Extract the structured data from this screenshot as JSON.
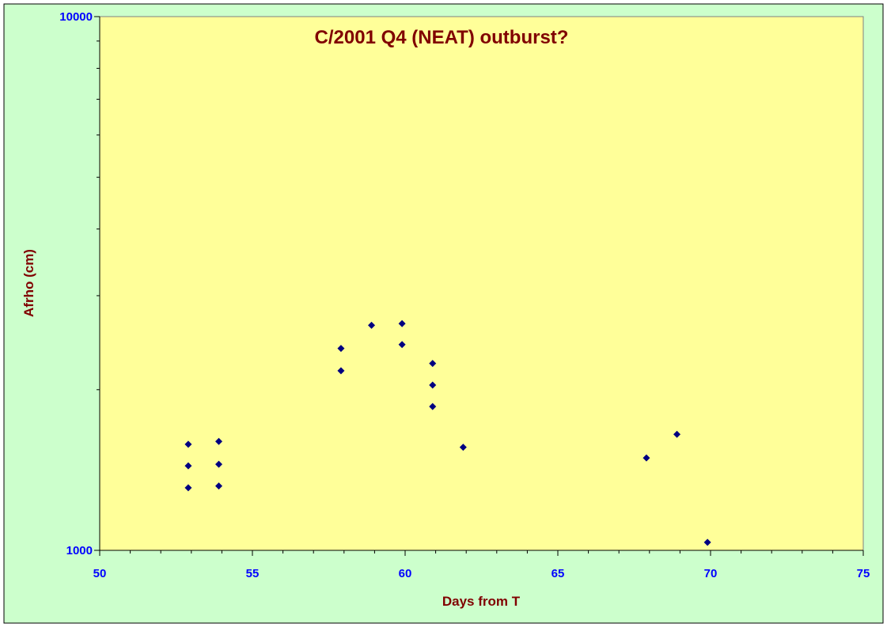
{
  "colors": {
    "background": "#ccffcc",
    "plot_area": "#ffff99",
    "title": "#800000",
    "axis_title": "#800000",
    "tick_label": "#0000ff",
    "marker": "#000080"
  },
  "chart_data": {
    "type": "scatter",
    "title": "C/2001 Q4 (NEAT) outburst?",
    "xlabel": "Days from T",
    "ylabel": "Afrho (cm)",
    "xlim": [
      50,
      75
    ],
    "ylim": [
      1000,
      10000
    ],
    "yscale": "log",
    "grid": false,
    "legend": "none",
    "marker": "diamond",
    "xticks": [
      50,
      55,
      60,
      65,
      70,
      75
    ],
    "xtick_labels": [
      "50",
      "55",
      "60",
      "65",
      "70",
      "75"
    ],
    "yticks": [
      1000,
      10000
    ],
    "ytick_labels": [
      "1000",
      "10000"
    ],
    "series": [
      {
        "points": [
          {
            "x": 52.9,
            "y": 1580
          },
          {
            "x": 52.9,
            "y": 1440
          },
          {
            "x": 52.9,
            "y": 1310
          },
          {
            "x": 53.9,
            "y": 1600
          },
          {
            "x": 53.9,
            "y": 1450
          },
          {
            "x": 53.9,
            "y": 1320
          },
          {
            "x": 57.9,
            "y": 2390
          },
          {
            "x": 57.9,
            "y": 2170
          },
          {
            "x": 58.9,
            "y": 2640
          },
          {
            "x": 59.9,
            "y": 2660
          },
          {
            "x": 59.9,
            "y": 2430
          },
          {
            "x": 60.9,
            "y": 2240
          },
          {
            "x": 60.9,
            "y": 2040
          },
          {
            "x": 60.9,
            "y": 1860
          },
          {
            "x": 61.9,
            "y": 1560
          },
          {
            "x": 67.9,
            "y": 1490
          },
          {
            "x": 68.9,
            "y": 1650
          },
          {
            "x": 69.9,
            "y": 1035
          }
        ]
      }
    ]
  }
}
